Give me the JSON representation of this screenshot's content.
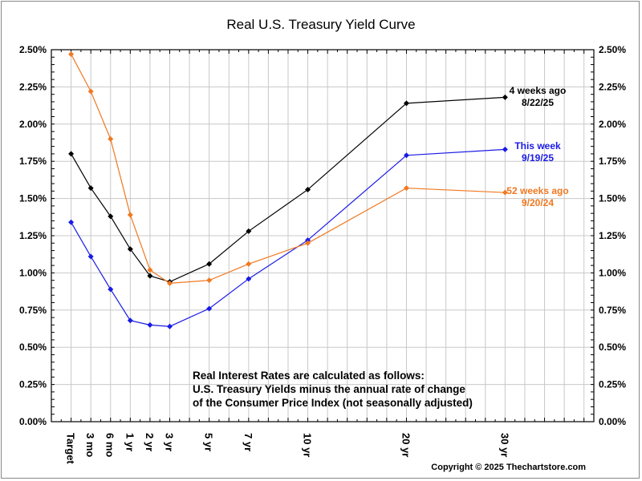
{
  "chart_data": {
    "type": "line",
    "title": "Real U.S. Treasury Yield Curve",
    "xlabel": "",
    "ylabel": "",
    "categories": [
      "Target",
      "3 mo",
      "6 mo",
      "1 yr",
      "2 yr",
      "3 yr",
      "5 yr",
      "7 yr",
      "10 yr",
      "20 yr",
      "30 yr"
    ],
    "x_positions": [
      1,
      2,
      3,
      4,
      5,
      6,
      8,
      10,
      13,
      18,
      23
    ],
    "xlim": [
      0,
      27.5
    ],
    "ylim": [
      0,
      2.5
    ],
    "yticks": [
      "0.00%",
      "0.25%",
      "0.50%",
      "0.75%",
      "1.00%",
      "1.25%",
      "1.50%",
      "1.75%",
      "2.00%",
      "2.25%",
      "2.50%"
    ],
    "grid": true,
    "series": [
      {
        "name": "4 weeks ago",
        "date": "8/22/25",
        "color": "#000000",
        "values": [
          1.8,
          1.57,
          1.38,
          1.16,
          0.98,
          0.94,
          1.06,
          1.28,
          1.56,
          2.14,
          2.18
        ]
      },
      {
        "name": "This week",
        "date": "9/19/25",
        "color": "#1a1ae6",
        "values": [
          1.34,
          1.11,
          0.89,
          0.68,
          0.65,
          0.64,
          0.76,
          0.96,
          1.22,
          1.79,
          1.83
        ]
      },
      {
        "name": "52 weeks ago",
        "date": "9/20/24",
        "color": "#f07820",
        "values": [
          2.47,
          2.22,
          1.9,
          1.39,
          1.02,
          0.93,
          0.95,
          1.06,
          1.2,
          1.57,
          1.54
        ]
      }
    ],
    "annotation": [
      "Real Interest Rates are calculated as follows:",
      "U.S. Treasury Yields minus the annual rate of change",
      "of the Consumer Price Index (not seasonally adjusted)"
    ],
    "copyright": "Copyright © 2025 Thechartstore.com"
  }
}
